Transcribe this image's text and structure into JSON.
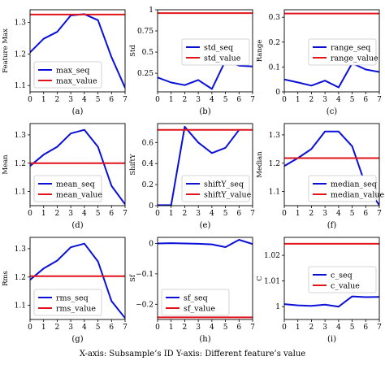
{
  "footer_caption": "X-axis: Subsample’s ID    Y-axis: Different feature’s value",
  "colors": {
    "seq": "#0a10d8",
    "value": "#e0141a"
  },
  "chart_data": [
    {
      "type": "line",
      "caption": "(a)",
      "ylabel": "Feature Max",
      "xlim": [
        0,
        7
      ],
      "ylim": [
        1.08,
        1.34
      ],
      "xticks": [
        0,
        1,
        2,
        3,
        4,
        5,
        6,
        7
      ],
      "yticks": [
        1.1,
        1.2,
        1.3
      ],
      "legend_pos": "bottom-left",
      "series": [
        {
          "name": "max_seq",
          "kind": "seq",
          "x": [
            0,
            1,
            2,
            3,
            4,
            5,
            6,
            7
          ],
          "y": [
            1.205,
            1.248,
            1.27,
            1.322,
            1.326,
            1.307,
            1.19,
            1.093
          ]
        },
        {
          "name": "max_value",
          "kind": "hline",
          "y": 1.325
        }
      ]
    },
    {
      "type": "line",
      "caption": "(b)",
      "ylabel": "Std",
      "xlim": [
        0,
        7
      ],
      "ylim": [
        0.03,
        1.0
      ],
      "xticks": [
        0,
        1,
        2,
        3,
        4,
        5,
        6,
        7
      ],
      "yticks": [
        0.25,
        0.5,
        0.75,
        1.0
      ],
      "legend_pos": "middle-right",
      "series": [
        {
          "name": "std_seq",
          "kind": "seq",
          "x": [
            0,
            1,
            2,
            3,
            4,
            5,
            6,
            7
          ],
          "y": [
            0.2,
            0.14,
            0.11,
            0.17,
            0.065,
            0.4,
            0.34,
            0.33
          ]
        },
        {
          "name": "std_value",
          "kind": "hline",
          "y": 0.96
        }
      ]
    },
    {
      "type": "line",
      "caption": "(c)",
      "ylabel": "Range",
      "xlim": [
        0,
        7
      ],
      "ylim": [
        0.0,
        0.33
      ],
      "xticks": [
        0,
        1,
        2,
        3,
        4,
        5,
        6,
        7
      ],
      "yticks": [
        0.0,
        0.1,
        0.2,
        0.3
      ],
      "legend_pos": "middle-right",
      "series": [
        {
          "name": "range_seq",
          "kind": "seq",
          "x": [
            0,
            1,
            2,
            3,
            4,
            5,
            6,
            7
          ],
          "y": [
            0.05,
            0.038,
            0.025,
            0.045,
            0.018,
            0.115,
            0.09,
            0.08
          ]
        },
        {
          "name": "range_value",
          "kind": "hline",
          "y": 0.315
        }
      ]
    },
    {
      "type": "line",
      "caption": "(d)",
      "ylabel": "Mean",
      "xlim": [
        0,
        7
      ],
      "ylim": [
        1.05,
        1.34
      ],
      "xticks": [
        0,
        1,
        2,
        3,
        4,
        5,
        6,
        7
      ],
      "yticks": [
        1.1,
        1.2,
        1.3
      ],
      "legend_pos": "bottom-left",
      "series": [
        {
          "name": "mean_seq",
          "kind": "seq",
          "x": [
            0,
            1,
            2,
            3,
            4,
            5,
            6,
            7
          ],
          "y": [
            1.19,
            1.23,
            1.258,
            1.305,
            1.318,
            1.258,
            1.12,
            1.055
          ]
        },
        {
          "name": "mean_value",
          "kind": "hline",
          "y": 1.2
        }
      ]
    },
    {
      "type": "line",
      "caption": "(e)",
      "ylabel": "ShiftY",
      "xlim": [
        0,
        7
      ],
      "ylim": [
        0.0,
        0.78
      ],
      "xticks": [
        0,
        1,
        2,
        3,
        4,
        5,
        6,
        7
      ],
      "yticks": [
        0.0,
        0.2,
        0.4,
        0.6
      ],
      "legend_pos": "bottom-right",
      "series": [
        {
          "name": "shiftY_seq",
          "kind": "seq",
          "x": [
            0,
            1,
            2,
            3,
            4,
            5,
            6
          ],
          "y": [
            0.005,
            0.005,
            0.75,
            0.6,
            0.5,
            0.55,
            0.72
          ]
        },
        {
          "name": "shiftY_value",
          "kind": "hline",
          "y": 0.72
        }
      ]
    },
    {
      "type": "line",
      "caption": "(f)",
      "ylabel": "Median",
      "xlim": [
        0,
        7
      ],
      "ylim": [
        1.05,
        1.34
      ],
      "xticks": [
        0,
        1,
        2,
        3,
        4,
        5,
        6,
        7
      ],
      "yticks": [
        1.1,
        1.2,
        1.3
      ],
      "legend_pos": "bottom-right",
      "series": [
        {
          "name": "median_seq",
          "kind": "seq",
          "x": [
            0,
            1,
            2,
            3,
            4,
            5,
            6,
            7
          ],
          "y": [
            1.19,
            1.218,
            1.25,
            1.312,
            1.312,
            1.26,
            1.12,
            1.052
          ]
        },
        {
          "name": "median_value",
          "kind": "hline",
          "y": 1.218
        }
      ]
    },
    {
      "type": "line",
      "caption": "(g)",
      "ylabel": "Rms",
      "xlim": [
        0,
        7
      ],
      "ylim": [
        1.05,
        1.34
      ],
      "xticks": [
        0,
        1,
        2,
        3,
        4,
        5,
        6,
        7
      ],
      "yticks": [
        1.1,
        1.2,
        1.3
      ],
      "legend_pos": "bottom-left",
      "series": [
        {
          "name": "rms_seq",
          "kind": "seq",
          "x": [
            0,
            1,
            2,
            3,
            4,
            5,
            6,
            7
          ],
          "y": [
            1.19,
            1.23,
            1.258,
            1.305,
            1.318,
            1.255,
            1.115,
            1.055
          ]
        },
        {
          "name": "rms_value",
          "kind": "hline",
          "y": 1.203
        }
      ]
    },
    {
      "type": "line",
      "caption": "(h)",
      "ylabel": "Sf",
      "xlim": [
        0,
        7
      ],
      "ylim": [
        -0.25,
        0.02
      ],
      "xticks": [
        0,
        1,
        2,
        3,
        4,
        5,
        6,
        7
      ],
      "yticks": [
        -0.2,
        -0.1,
        0.0
      ],
      "legend_pos": "bottom-left",
      "series": [
        {
          "name": "sf_seq",
          "kind": "seq",
          "x": [
            0,
            1,
            2,
            3,
            4,
            5,
            6,
            7
          ],
          "y": [
            0.0,
            0.001,
            0.0,
            -0.001,
            -0.003,
            -0.012,
            0.012,
            -0.002
          ]
        },
        {
          "name": "sf_value",
          "kind": "hline",
          "y": -0.243
        }
      ]
    },
    {
      "type": "line",
      "caption": "(i)",
      "ylabel": "C",
      "xlim": [
        0,
        7
      ],
      "ylim": [
        0.995,
        1.027
      ],
      "xticks": [
        0,
        1,
        2,
        3,
        4,
        5,
        6,
        7
      ],
      "yticks": [
        1.0,
        1.01,
        1.02
      ],
      "legend_pos": "middle-right",
      "series": [
        {
          "name": "c_seq",
          "kind": "seq",
          "x": [
            0,
            1,
            2,
            3,
            4,
            5,
            6,
            7
          ],
          "y": [
            1.001,
            1.0005,
            1.0003,
            1.0008,
            1.0,
            1.004,
            1.0037,
            1.0038
          ]
        },
        {
          "name": "c_value",
          "kind": "hline",
          "y": 1.0245
        }
      ]
    }
  ]
}
